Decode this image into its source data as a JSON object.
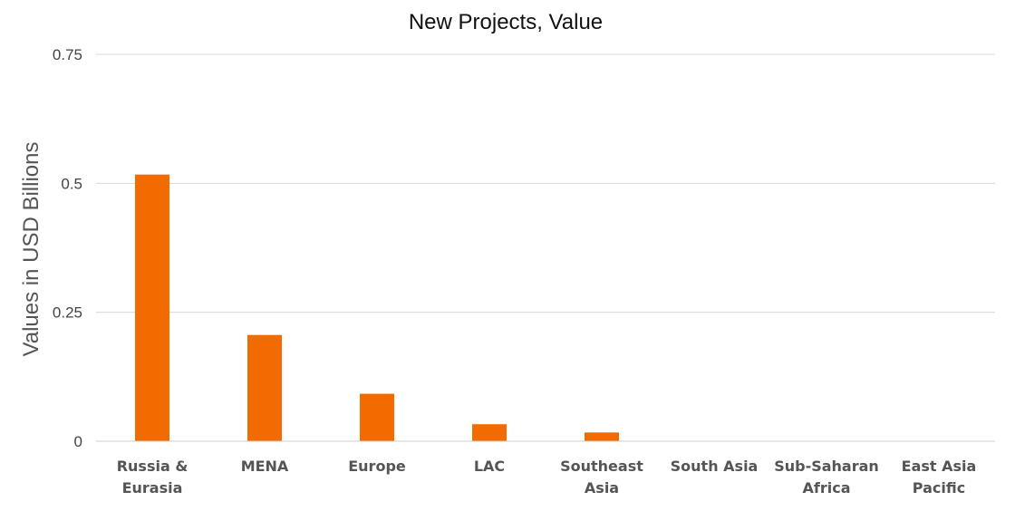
{
  "chart_data": {
    "type": "bar",
    "title": "New Projects, Value",
    "xlabel": "",
    "ylabel": "Values in USD Billions",
    "ylim": [
      0,
      0.75
    ],
    "yticks": [
      {
        "value": 0,
        "label": "0"
      },
      {
        "value": 0.25,
        "label": "0.25"
      },
      {
        "value": 0.5,
        "label": "0.5"
      },
      {
        "value": 0.75,
        "label": "0.75"
      }
    ],
    "grid": true,
    "legend": "none",
    "bar_color": "#f26b00",
    "categories": [
      [
        "Russia &",
        "Eurasia"
      ],
      [
        "MENA"
      ],
      [
        "Europe"
      ],
      [
        "LAC"
      ],
      [
        "Southeast",
        "Asia"
      ],
      [
        "South Asia"
      ],
      [
        "Sub-Saharan",
        "Africa"
      ],
      [
        "East Asia",
        "Pacific"
      ]
    ],
    "values": [
      0.517,
      0.206,
      0.092,
      0.033,
      0.017,
      0,
      0,
      0
    ]
  }
}
